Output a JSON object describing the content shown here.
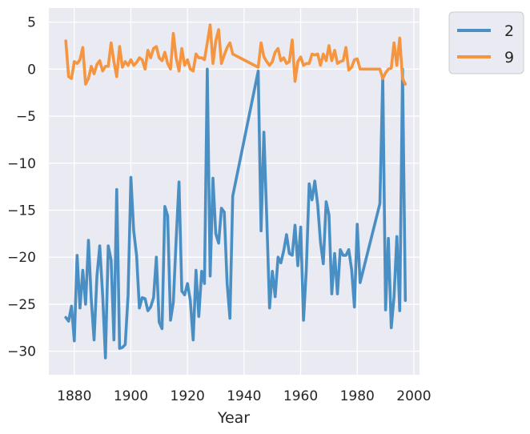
{
  "chart_data": {
    "type": "line",
    "title": "",
    "xlabel": "Year",
    "ylabel": "",
    "xlim": [
      1871,
      2002
    ],
    "ylim": [
      -32.5,
      6.5
    ],
    "xticks": [
      1880,
      1900,
      1920,
      1940,
      1960,
      1980,
      2000
    ],
    "yticks": [
      5,
      0,
      -5,
      -10,
      -15,
      -20,
      -25,
      -30
    ],
    "xtick_labels": [
      "1880",
      "1900",
      "1920",
      "1940",
      "1960",
      "1980",
      "2000"
    ],
    "ytick_labels": [
      "5",
      "0",
      "−5",
      "−10",
      "−15",
      "−20",
      "−25",
      "−30"
    ],
    "grid": true,
    "legend_position": "outside-top-right",
    "series": [
      {
        "name": "2",
        "color": "#4a8fc4",
        "x": [
          1877,
          1878,
          1879,
          1880,
          1881,
          1882,
          1883,
          1884,
          1885,
          1886,
          1887,
          1888,
          1889,
          1890,
          1891,
          1892,
          1893,
          1894,
          1895,
          1896,
          1897,
          1898,
          1899,
          1900,
          1901,
          1902,
          1903,
          1904,
          1905,
          1906,
          1907,
          1908,
          1909,
          1910,
          1911,
          1912,
          1913,
          1914,
          1915,
          1916,
          1917,
          1918,
          1919,
          1920,
          1921,
          1922,
          1923,
          1924,
          1925,
          1926,
          1927,
          1928,
          1929,
          1930,
          1931,
          1932,
          1933,
          1934,
          1935,
          1936,
          1945,
          1946,
          1947,
          1948,
          1949,
          1950,
          1951,
          1952,
          1953,
          1954,
          1955,
          1956,
          1957,
          1958,
          1959,
          1960,
          1961,
          1962,
          1963,
          1964,
          1965,
          1966,
          1967,
          1968,
          1969,
          1970,
          1971,
          1972,
          1973,
          1974,
          1975,
          1976,
          1977,
          1978,
          1979,
          1980,
          1981,
          1988,
          1989,
          1990,
          1991,
          1992,
          1993,
          1994,
          1995,
          1996,
          1997
        ],
        "y": [
          -26.4,
          -26.8,
          -25.2,
          -28.9,
          -19.8,
          -25.4,
          -21.4,
          -25.0,
          -18.2,
          -24.5,
          -28.8,
          -22.0,
          -18.8,
          -24.0,
          -30.7,
          -18.8,
          -20.3,
          -28.8,
          -12.8,
          -29.7,
          -29.6,
          -29.3,
          -24.0,
          -11.5,
          -17.2,
          -19.8,
          -25.4,
          -24.3,
          -24.4,
          -25.7,
          -25.3,
          -24.3,
          -20.0,
          -26.9,
          -27.6,
          -14.6,
          -15.6,
          -26.7,
          -24.8,
          -18.2,
          -12.0,
          -23.6,
          -24.0,
          -22.8,
          -24.6,
          -28.8,
          -21.4,
          -26.3,
          -21.5,
          -22.8,
          0.0,
          -22.0,
          -11.6,
          -17.5,
          -18.5,
          -14.8,
          -15.2,
          -22.8,
          -26.5,
          -13.5,
          -0.2,
          -17.2,
          -6.7,
          -15.6,
          -25.4,
          -21.5,
          -24.2,
          -20.0,
          -20.6,
          -19.3,
          -17.6,
          -19.6,
          -19.8,
          -16.6,
          -20.9,
          -16.8,
          -26.7,
          -21.3,
          -12.2,
          -13.9,
          -11.9,
          -14.4,
          -18.4,
          -20.7,
          -14.1,
          -15.5,
          -23.9,
          -19.6,
          -23.9,
          -19.2,
          -19.8,
          -19.8,
          -19.2,
          -21.3,
          -25.3,
          -16.5,
          -22.7,
          -14.3,
          -0.7,
          -25.6,
          -18.0,
          -27.5,
          -24.2,
          -17.8,
          -25.7,
          0.0,
          -24.6
        ]
      },
      {
        "name": "9",
        "color": "#f5953f",
        "x": [
          1877,
          1878,
          1879,
          1880,
          1881,
          1882,
          1883,
          1884,
          1885,
          1886,
          1887,
          1888,
          1889,
          1890,
          1891,
          1892,
          1893,
          1894,
          1895,
          1896,
          1897,
          1898,
          1899,
          1900,
          1901,
          1902,
          1903,
          1904,
          1905,
          1906,
          1907,
          1908,
          1909,
          1910,
          1911,
          1912,
          1913,
          1914,
          1915,
          1916,
          1917,
          1918,
          1919,
          1920,
          1921,
          1922,
          1923,
          1924,
          1925,
          1926,
          1927,
          1928,
          1929,
          1930,
          1931,
          1932,
          1933,
          1934,
          1935,
          1936,
          1945,
          1946,
          1947,
          1948,
          1949,
          1950,
          1951,
          1952,
          1953,
          1954,
          1955,
          1956,
          1957,
          1958,
          1959,
          1960,
          1961,
          1962,
          1963,
          1964,
          1965,
          1966,
          1967,
          1968,
          1969,
          1970,
          1971,
          1972,
          1973,
          1974,
          1975,
          1976,
          1977,
          1978,
          1979,
          1980,
          1981,
          1988,
          1989,
          1990,
          1991,
          1992,
          1993,
          1994,
          1995,
          1996,
          1997
        ],
        "y": [
          3.0,
          -0.8,
          -1.0,
          0.8,
          0.6,
          1.0,
          2.3,
          -1.6,
          -1.0,
          0.3,
          -0.5,
          0.5,
          0.9,
          -0.2,
          0.3,
          0.3,
          2.8,
          0.8,
          -0.8,
          2.4,
          0.2,
          0.8,
          0.4,
          1.0,
          0.4,
          0.7,
          1.2,
          1.0,
          0.0,
          2.0,
          1.2,
          2.2,
          2.4,
          1.2,
          0.9,
          1.8,
          0.6,
          0.0,
          3.8,
          1.2,
          -0.2,
          2.2,
          0.4,
          1.0,
          0.0,
          -0.2,
          1.6,
          1.2,
          1.2,
          1.0,
          2.8,
          4.7,
          0.6,
          3.0,
          4.2,
          0.6,
          1.5,
          2.3,
          2.8,
          1.6,
          0.2,
          2.8,
          1.3,
          0.8,
          0.4,
          0.8,
          1.8,
          2.2,
          0.9,
          1.2,
          0.6,
          0.8,
          3.1,
          -1.3,
          0.8,
          1.3,
          0.4,
          0.6,
          0.6,
          1.6,
          1.5,
          1.6,
          0.4,
          1.6,
          0.9,
          2.5,
          0.9,
          2.0,
          0.6,
          0.8,
          0.9,
          2.3,
          -0.1,
          0.2,
          1.0,
          1.1,
          0.0,
          0.0,
          -1.0,
          -0.4,
          0.0,
          0.1,
          2.8,
          0.4,
          3.3,
          -1.0,
          -1.6
        ]
      }
    ]
  }
}
